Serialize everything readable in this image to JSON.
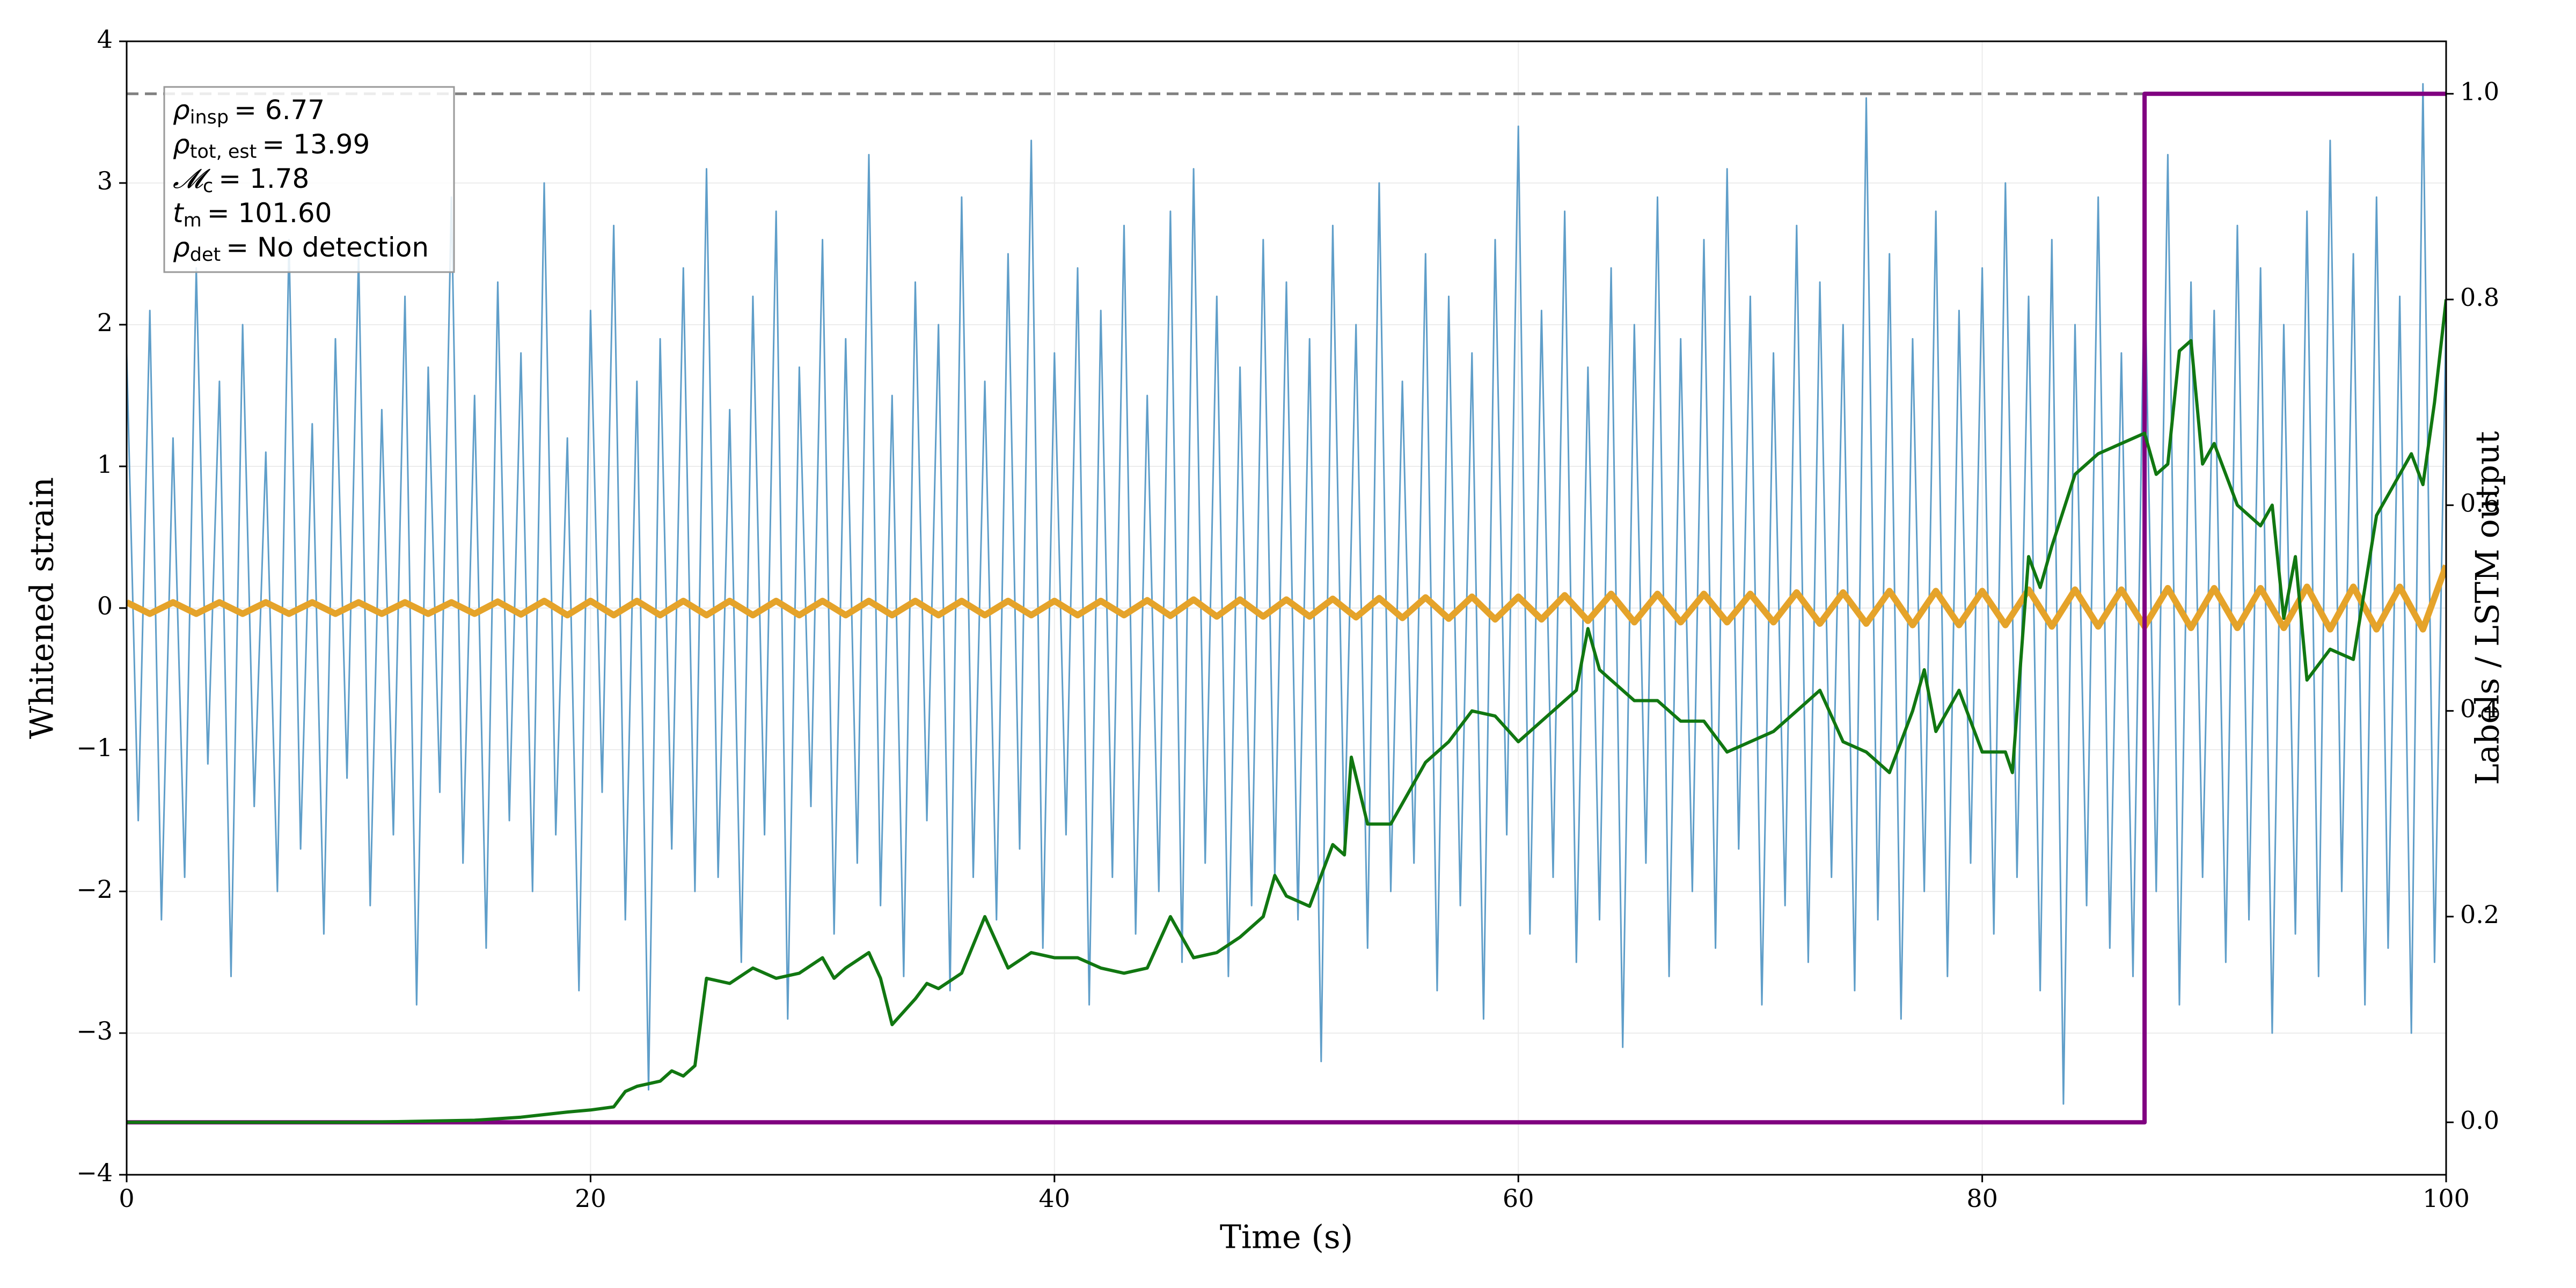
{
  "chart_data": {
    "type": "line",
    "xlabel": "Time (s)",
    "ylabel": "Whitened strain",
    "y2label": "Labels / LSTM output",
    "xlim": [
      0,
      100
    ],
    "xticks": [
      0,
      20,
      40,
      60,
      80,
      100
    ],
    "ylim": [
      -4,
      4
    ],
    "yticks": [
      {
        "value": -4,
        "label": "−4"
      },
      {
        "value": -3,
        "label": "−3"
      },
      {
        "value": -2,
        "label": "−2"
      },
      {
        "value": -1,
        "label": "−1"
      },
      0,
      1,
      2,
      3,
      4
    ],
    "y2lim": [
      -0.051,
      1.051
    ],
    "y2ticks": [
      {
        "value": 0,
        "label": "0.0"
      },
      {
        "value": 0.2,
        "label": "0.2"
      },
      {
        "value": 0.4,
        "label": "0.4"
      },
      {
        "value": 0.6,
        "label": "0.6"
      },
      {
        "value": 0.8,
        "label": "0.8"
      },
      {
        "value": 1,
        "label": "1.0"
      }
    ],
    "grid": true,
    "reference_line": {
      "value": 1,
      "axis": "y2",
      "color": "#808080",
      "style": "dashed"
    },
    "series": [
      {
        "color": "#5f9ec9",
        "width": 3,
        "x": [
          0,
          0.5,
          1,
          1.5,
          2,
          2.5,
          3,
          3.5,
          4,
          4.5,
          5,
          5.5,
          6,
          6.5,
          7,
          7.5,
          8,
          8.5,
          9,
          9.5,
          10,
          10.5,
          11,
          11.5,
          12,
          12.5,
          13,
          13.5,
          14,
          14.5,
          15,
          15.5,
          16,
          16.5,
          17,
          17.5,
          18,
          18.5,
          19,
          19.5,
          20,
          20.5,
          21,
          21.5,
          22,
          22.5,
          23,
          23.5,
          24,
          24.5,
          25,
          25.5,
          26,
          26.5,
          27,
          27.5,
          28,
          28.5,
          29,
          29.5,
          30,
          30.5,
          31,
          31.5,
          32,
          32.5,
          33,
          33.5,
          34,
          34.5,
          35,
          35.5,
          36,
          36.5,
          37,
          37.5,
          38,
          38.5,
          39,
          39.5,
          40,
          40.5,
          41,
          41.5,
          42,
          42.5,
          43,
          43.5,
          44,
          44.5,
          45,
          45.5,
          46,
          46.5,
          47,
          47.5,
          48,
          48.5,
          49,
          49.5,
          50,
          50.5,
          51,
          51.5,
          52,
          52.5,
          53,
          53.5,
          54,
          54.5,
          55,
          55.5,
          56,
          56.5,
          57,
          57.5,
          58,
          58.5,
          59,
          59.5,
          60,
          60.5,
          61,
          61.5,
          62,
          62.5,
          63,
          63.5,
          64,
          64.5,
          65,
          65.5,
          66,
          66.5,
          67,
          67.5,
          68,
          68.5,
          69,
          69.5,
          70,
          70.5,
          71,
          71.5,
          72,
          72.5,
          73,
          73.5,
          74,
          74.5,
          75,
          75.5,
          76,
          76.5,
          77,
          77.5,
          78,
          78.5,
          79,
          79.5,
          80,
          80.5,
          81,
          81.5,
          82,
          82.5,
          83,
          83.5,
          84,
          84.5,
          85,
          85.5,
          86,
          86.5,
          87,
          87.5,
          88,
          88.5,
          89,
          89.5,
          90,
          90.5,
          91,
          91.5,
          92,
          92.5,
          93,
          93.5,
          94,
          94.5,
          95,
          95.5,
          96,
          96.5,
          97,
          97.5,
          98,
          98.5,
          99,
          99.5,
          100
        ],
        "values": [
          1.8,
          -1.5,
          2.1,
          -2.2,
          1.2,
          -1.9,
          2.4,
          -1.1,
          1.6,
          -2.6,
          2.0,
          -1.4,
          1.1,
          -2.0,
          2.6,
          -1.7,
          1.3,
          -2.3,
          1.9,
          -1.2,
          2.5,
          -2.1,
          1.4,
          -1.6,
          2.2,
          -2.8,
          1.7,
          -1.3,
          2.9,
          -1.8,
          1.5,
          -2.4,
          2.3,
          -1.5,
          1.8,
          -2.0,
          3.0,
          -1.6,
          1.2,
          -2.7,
          2.1,
          -1.3,
          2.7,
          -2.2,
          1.6,
          -3.4,
          1.9,
          -1.7,
          2.4,
          -2.0,
          3.1,
          -1.9,
          1.4,
          -2.5,
          2.2,
          -1.6,
          2.8,
          -2.9,
          1.7,
          -1.4,
          2.6,
          -2.3,
          1.9,
          -1.8,
          3.2,
          -2.1,
          1.5,
          -2.6,
          2.3,
          -1.5,
          2.0,
          -2.7,
          2.9,
          -1.9,
          1.6,
          -2.2,
          2.5,
          -1.7,
          3.3,
          -2.4,
          1.8,
          -1.6,
          2.4,
          -2.8,
          2.1,
          -1.9,
          2.7,
          -2.3,
          1.5,
          -2.0,
          2.8,
          -2.5,
          3.1,
          -1.8,
          2.2,
          -2.6,
          1.7,
          -2.1,
          2.6,
          -1.9,
          2.3,
          -2.2,
          1.9,
          -3.2,
          2.7,
          -1.7,
          2.0,
          -2.4,
          3.0,
          -2.0,
          1.6,
          -1.8,
          2.5,
          -2.7,
          2.2,
          -2.1,
          1.8,
          -2.9,
          2.6,
          -1.6,
          3.4,
          -2.3,
          2.1,
          -1.9,
          2.8,
          -2.5,
          1.7,
          -2.2,
          2.4,
          -3.1,
          2.0,
          -1.8,
          2.9,
          -2.6,
          1.9,
          -2.0,
          2.6,
          -2.4,
          3.1,
          -1.7,
          2.2,
          -2.8,
          1.8,
          -2.1,
          2.7,
          -2.5,
          2.3,
          -1.9,
          2.0,
          -2.7,
          3.6,
          -2.2,
          2.5,
          -2.9,
          1.9,
          -2.0,
          2.8,
          -2.6,
          2.1,
          -1.8,
          2.4,
          -2.3,
          3.0,
          -1.9,
          2.2,
          -2.7,
          2.6,
          -3.5,
          2.0,
          -2.1,
          2.9,
          -2.4,
          1.8,
          -2.6,
          2.5,
          -2.0,
          3.2,
          -2.8,
          2.3,
          -1.9,
          2.1,
          -2.5,
          2.7,
          -2.2,
          2.4,
          -3.0,
          2.0,
          -2.3,
          2.8,
          -2.6,
          3.3,
          -2.0,
          2.5,
          -2.8,
          2.9,
          -2.4,
          2.2,
          -3.0,
          3.7,
          -2.5,
          2.1
        ]
      },
      {
        "color": "#e5a32a",
        "width": 12,
        "x": [
          0,
          1,
          2,
          3,
          4,
          5,
          6,
          7,
          8,
          9,
          10,
          11,
          12,
          13,
          14,
          15,
          16,
          17,
          18,
          19,
          20,
          21,
          22,
          23,
          24,
          25,
          26,
          27,
          28,
          29,
          30,
          31,
          32,
          33,
          34,
          35,
          36,
          37,
          38,
          39,
          40,
          41,
          42,
          43,
          44,
          45,
          46,
          47,
          48,
          49,
          50,
          51,
          52,
          53,
          54,
          55,
          56,
          57,
          58,
          59,
          60,
          61,
          62,
          63,
          64,
          65,
          66,
          67,
          68,
          69,
          70,
          71,
          72,
          73,
          74,
          75,
          76,
          77,
          78,
          79,
          80,
          81,
          82,
          83,
          84,
          85,
          86,
          87,
          88,
          89,
          90,
          91,
          92,
          93,
          94,
          95,
          96,
          97,
          98,
          99,
          100
        ],
        "values": [
          0.04,
          -0.04,
          0.04,
          -0.04,
          0.04,
          -0.04,
          0.04,
          -0.04,
          0.04,
          -0.04,
          0.04,
          -0.04,
          0.04,
          -0.04,
          0.04,
          -0.04,
          0.045,
          -0.045,
          0.05,
          -0.05,
          0.05,
          -0.05,
          0.05,
          -0.05,
          0.05,
          -0.05,
          0.05,
          -0.05,
          0.05,
          -0.05,
          0.05,
          -0.05,
          0.05,
          -0.05,
          0.05,
          -0.05,
          0.05,
          -0.05,
          0.05,
          -0.05,
          0.05,
          -0.05,
          0.05,
          -0.05,
          0.055,
          -0.055,
          0.06,
          -0.06,
          0.06,
          -0.06,
          0.06,
          -0.06,
          0.065,
          -0.065,
          0.07,
          -0.07,
          0.075,
          -0.075,
          0.08,
          -0.08,
          0.08,
          -0.08,
          0.09,
          -0.09,
          0.1,
          -0.1,
          0.1,
          -0.1,
          0.1,
          -0.1,
          0.1,
          -0.1,
          0.11,
          -0.11,
          0.11,
          -0.11,
          0.12,
          -0.12,
          0.12,
          -0.12,
          0.12,
          -0.12,
          0.13,
          -0.13,
          0.13,
          -0.13,
          0.13,
          -0.13,
          0.14,
          -0.14,
          0.14,
          -0.14,
          0.14,
          -0.14,
          0.15,
          -0.15,
          0.15,
          -0.15,
          0.15,
          -0.15,
          0.3
        ]
      },
      {
        "color": "#800080",
        "width": 8,
        "axis": "y2",
        "x": [
          0,
          87,
          87,
          100
        ],
        "values": [
          0,
          0,
          1,
          1
        ]
      },
      {
        "color": "#117711",
        "width": 6,
        "axis": "y2",
        "x": [
          0,
          5,
          10,
          15,
          17,
          19,
          20,
          21,
          21.5,
          22,
          23,
          23.5,
          24,
          24.5,
          25,
          26,
          27,
          28,
          29,
          30,
          30.5,
          31,
          32,
          32.5,
          33,
          34,
          34.5,
          35,
          36,
          37,
          38,
          39,
          40,
          41,
          42,
          43,
          44,
          45,
          46,
          47,
          48,
          49,
          49.5,
          50,
          51,
          52,
          52.5,
          52.8,
          53.5,
          54.5,
          55,
          56,
          57,
          58,
          59,
          60,
          61,
          62,
          62.5,
          63,
          63.5,
          64,
          65,
          66,
          67,
          68,
          69,
          70,
          71,
          72,
          73,
          74,
          75,
          76,
          77,
          77.5,
          78,
          79,
          80,
          81,
          81.3,
          82,
          82.5,
          83,
          84,
          85,
          86,
          87,
          87.5,
          88,
          88.5,
          89,
          89.5,
          90,
          91,
          92,
          92.5,
          93,
          93.5,
          94,
          95,
          96,
          97,
          98,
          98.5,
          99,
          99.5,
          100
        ],
        "values": [
          0,
          0,
          0,
          0.002,
          0.005,
          0.01,
          0.012,
          0.015,
          0.03,
          0.035,
          0.04,
          0.05,
          0.045,
          0.055,
          0.14,
          0.135,
          0.15,
          0.14,
          0.145,
          0.16,
          0.14,
          0.15,
          0.165,
          0.14,
          0.095,
          0.12,
          0.135,
          0.13,
          0.145,
          0.2,
          0.15,
          0.165,
          0.16,
          0.16,
          0.15,
          0.145,
          0.15,
          0.2,
          0.16,
          0.165,
          0.18,
          0.2,
          0.24,
          0.22,
          0.21,
          0.27,
          0.26,
          0.355,
          0.29,
          0.29,
          0.31,
          0.35,
          0.37,
          0.4,
          0.395,
          0.37,
          0.39,
          0.41,
          0.42,
          0.48,
          0.44,
          0.43,
          0.41,
          0.41,
          0.39,
          0.39,
          0.36,
          0.37,
          0.38,
          0.4,
          0.42,
          0.37,
          0.36,
          0.34,
          0.4,
          0.44,
          0.38,
          0.42,
          0.36,
          0.36,
          0.34,
          0.55,
          0.52,
          0.56,
          0.63,
          0.65,
          0.66,
          0.67,
          0.63,
          0.64,
          0.75,
          0.76,
          0.64,
          0.66,
          0.6,
          0.58,
          0.6,
          0.49,
          0.55,
          0.43,
          0.46,
          0.45,
          0.59,
          0.63,
          0.65,
          0.62,
          0.7,
          0.8
        ]
      }
    ],
    "annotations": [
      {
        "symbol": "ρ",
        "subscript": "insp",
        "text": "= 6.77"
      },
      {
        "symbol": "ρ",
        "subscript": "tot, est",
        "text": "= 13.99"
      },
      {
        "symbol": "𝓜",
        "subscript": "c",
        "text": "= 1.78"
      },
      {
        "symbol": "t",
        "subscript": "m",
        "text": "= 101.60"
      },
      {
        "symbol": "ρ",
        "subscript": "det",
        "text": "= No detection"
      }
    ]
  }
}
